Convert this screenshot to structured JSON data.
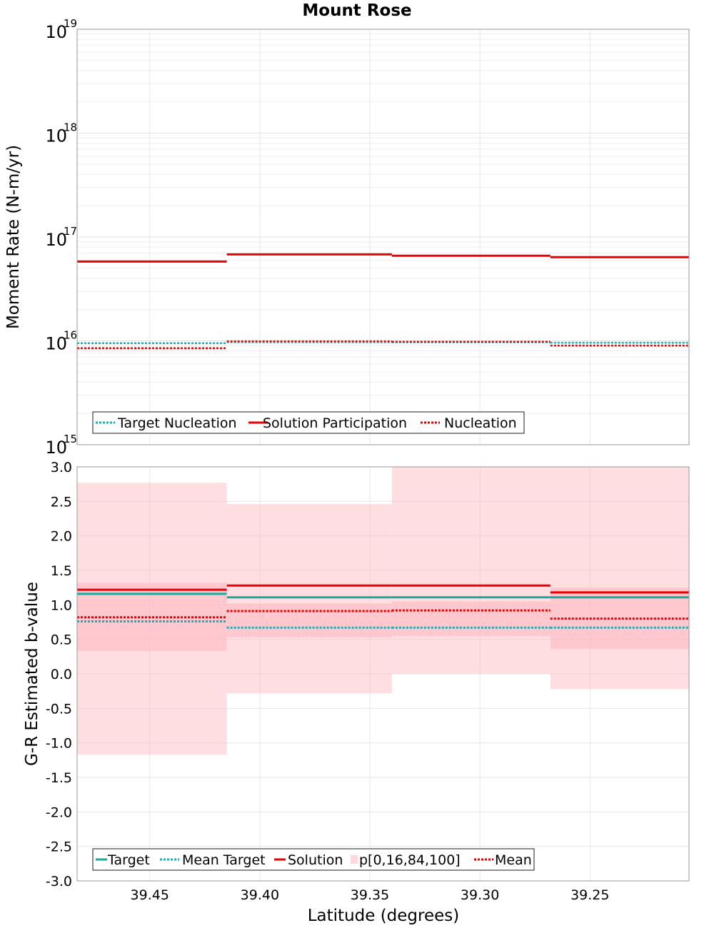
{
  "title": "Mount Rose",
  "chart_data": [
    {
      "type": "line",
      "ylabel": "Moment Rate (N-m/yr)",
      "yscale": "log",
      "ylim": [
        1000000000000000.0,
        1e+19
      ],
      "xlim": [
        39.483,
        39.205
      ],
      "x_reversed": true,
      "grid": true,
      "legend_position": "bottom-left",
      "y_tick_labels": [
        {
          "value": 1000000000000000.0,
          "base": "10",
          "exp": "15"
        },
        {
          "value": 1e+16,
          "base": "10",
          "exp": "16"
        },
        {
          "value": 1e+17,
          "base": "10",
          "exp": "17"
        },
        {
          "value": 1e+18,
          "base": "10",
          "exp": "18"
        },
        {
          "value": 1e+19,
          "base": "10",
          "exp": "19"
        }
      ],
      "bin_edges": [
        39.483,
        39.415,
        39.34,
        39.268,
        39.205
      ],
      "series": [
        {
          "name": "Target Nucleation",
          "color": "#17b0b8",
          "style": "dotted",
          "values": [
            9500000000000000.0,
            9700000000000000.0,
            9700000000000000.0,
            9600000000000000.0
          ]
        },
        {
          "name": "Solution Participation",
          "color": "#ee0000",
          "style": "solid",
          "values": [
            5.8e+16,
            6.8e+16,
            6.6e+16,
            6.4e+16
          ]
        },
        {
          "name": "Nucleation",
          "color": "#ee0000",
          "style": "dotted",
          "values": [
            8500000000000000.0,
            9900000000000000.0,
            9800000000000000.0,
            9000000000000000.0
          ]
        }
      ]
    },
    {
      "type": "line",
      "xlabel": "Latitude (degrees)",
      "ylabel": "G-R Estimated b-value",
      "ylim": [
        -3.0,
        3.0
      ],
      "xlim": [
        39.483,
        39.205
      ],
      "x_reversed": true,
      "grid": true,
      "legend_position": "bottom-left",
      "y_ticks": [
        "-3.0",
        "-2.5",
        "-2.0",
        "-1.5",
        "-1.0",
        "-0.5",
        "0.0",
        "0.5",
        "1.0",
        "1.5",
        "2.0",
        "2.5",
        "3.0"
      ],
      "x_ticks": [
        "39.45",
        "39.40",
        "39.35",
        "39.30",
        "39.25"
      ],
      "bin_edges": [
        39.483,
        39.415,
        39.34,
        39.268,
        39.205
      ],
      "bands": {
        "name": "p[0,16,84,100]",
        "color": "#ffb6bf",
        "p0": [
          -1.17,
          -0.28,
          0.0,
          -0.22
        ],
        "p16": [
          0.33,
          0.53,
          0.55,
          0.36
        ],
        "p84": [
          1.32,
          1.02,
          1.05,
          1.25
        ],
        "p100": [
          2.77,
          2.46,
          3.0,
          3.0
        ]
      },
      "series": [
        {
          "name": "Target",
          "color": "#1aa99b",
          "style": "solid",
          "values": [
            1.16,
            1.11,
            1.11,
            1.11
          ]
        },
        {
          "name": "Mean Target",
          "color": "#17b0b8",
          "style": "dotted",
          "values": [
            0.76,
            0.67,
            0.67,
            0.67
          ]
        },
        {
          "name": "Solution",
          "color": "#ee0000",
          "style": "solid",
          "values": [
            1.22,
            1.28,
            1.28,
            1.18
          ]
        },
        {
          "name": "Mean",
          "color": "#ee0000",
          "style": "dotted",
          "values": [
            0.82,
            0.91,
            0.92,
            0.8
          ]
        }
      ]
    }
  ]
}
